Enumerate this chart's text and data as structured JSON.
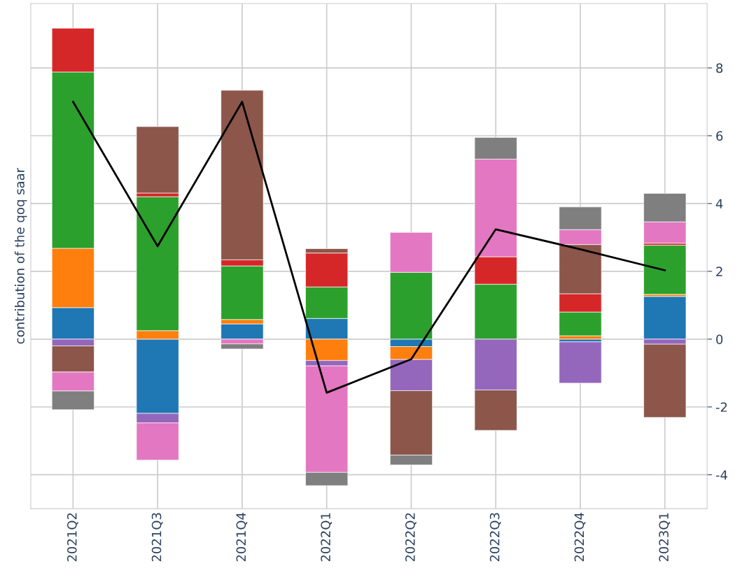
{
  "chart_data": {
    "type": "bar",
    "stacked": true,
    "ylabel": "contribution of the qoq saar",
    "categories": [
      "2021Q2",
      "2021Q3",
      "2021Q4",
      "2022Q1",
      "2022Q2",
      "2022Q3",
      "2022Q4",
      "2023Q1"
    ],
    "series": [
      {
        "color": "#1f77b4",
        "values": [
          0.93,
          -2.19,
          0.45,
          0.61,
          -0.22,
          null,
          -0.08,
          1.26
        ]
      },
      {
        "color": "#ff7f0e",
        "values": [
          1.75,
          0.25,
          0.13,
          -0.63,
          -0.38,
          null,
          0.1,
          0.06
        ]
      },
      {
        "color": "#2ca02c",
        "values": [
          5.2,
          3.95,
          1.58,
          0.93,
          1.97,
          1.62,
          0.7,
          1.45
        ]
      },
      {
        "color": "#d62728",
        "values": [
          1.29,
          0.11,
          0.18,
          1.0,
          null,
          0.81,
          0.54,
          0.06
        ]
      },
      {
        "color": "#9467bd",
        "values": [
          -0.2,
          -0.28,
          null,
          -0.16,
          -0.92,
          -1.5,
          -1.22,
          -0.15
        ]
      },
      {
        "color": "#8c564b",
        "values": [
          -0.77,
          1.96,
          5.0,
          0.13,
          -1.9,
          -1.19,
          1.45,
          -2.16
        ]
      },
      {
        "color": "#e377c2",
        "values": [
          -0.56,
          -1.1,
          -0.14,
          -3.14,
          1.18,
          2.88,
          0.44,
          0.63
        ]
      },
      {
        "color": "#7f7f7f",
        "values": [
          -0.55,
          null,
          -0.15,
          -0.39,
          -0.29,
          0.64,
          0.67,
          0.84
        ]
      },
      {
        "type": "line",
        "color": "#000000",
        "values": [
          7.0,
          2.74,
          7.0,
          -1.58,
          -0.59,
          3.24,
          2.65,
          2.03
        ]
      }
    ],
    "ylim": [
      -5,
      9.9
    ],
    "yticks": [
      -4,
      -2,
      0,
      2,
      4,
      6,
      8
    ],
    "grid": true
  }
}
